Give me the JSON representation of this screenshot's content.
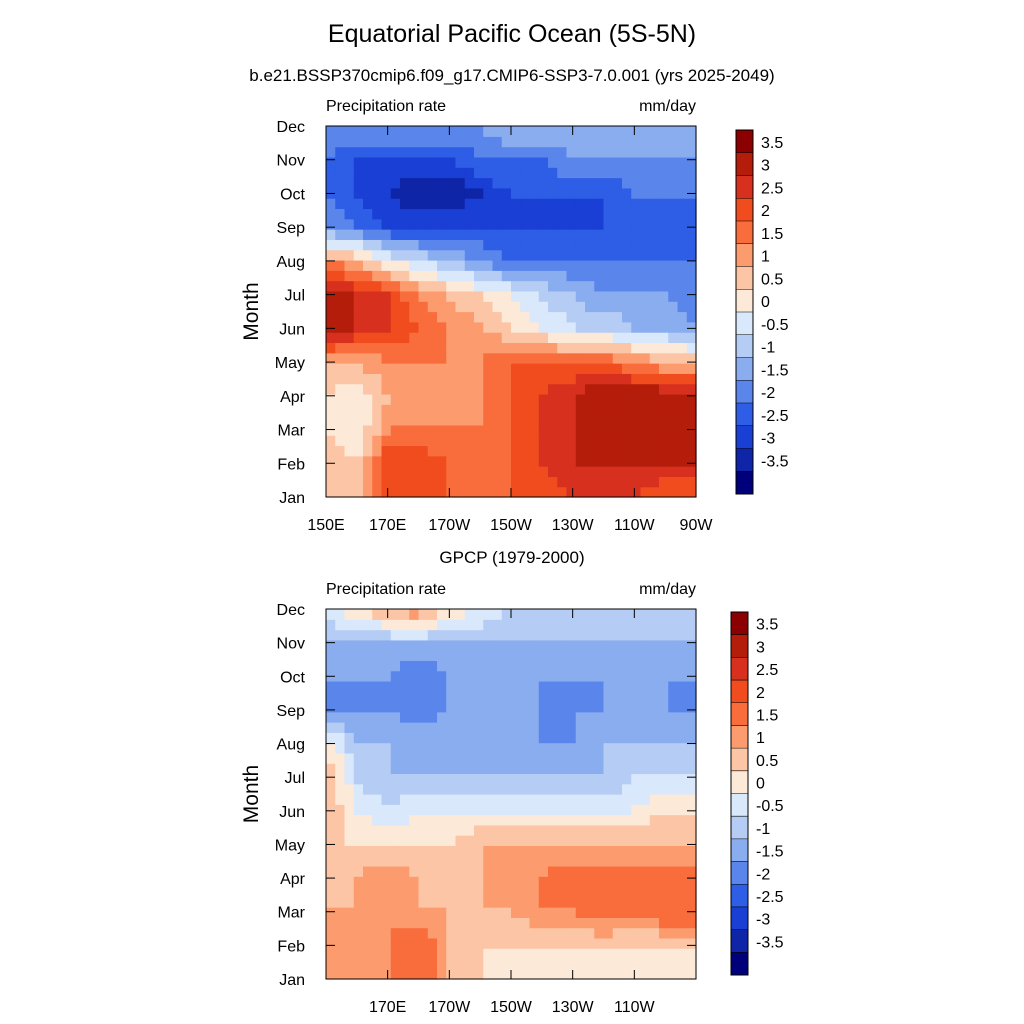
{
  "figure": {
    "title": "Equatorial Pacific Ocean (5S-5N)",
    "subtitle": "b.e21.BSSP370cmip6.f09_g17.CMIP6-SSP3-7.0.001 (yrs 2025-2049)",
    "panel2_title": "GPCP (1979-2000)"
  },
  "colorbar": {
    "levels": [
      "3.5",
      "3",
      "2.5",
      "2",
      "1.5",
      "1",
      "0.5",
      "0",
      "-0.5",
      "-1",
      "-1.5",
      "-2",
      "-2.5",
      "-3",
      "-3.5"
    ],
    "colors": [
      "#8b0000",
      "#b51d0b",
      "#d7301f",
      "#f04c1e",
      "#f96c3c",
      "#fb9b6e",
      "#fcc5a5",
      "#fde9d8",
      "#d9e8fb",
      "#b5cdf5",
      "#8aadf0",
      "#5a86ec",
      "#2e5de6",
      "#1a3fd4",
      "#0e25a8",
      "#00007a"
    ]
  },
  "chart_data": [
    {
      "type": "heatmap",
      "left_label": "Precipitation rate",
      "right_label": "mm/day",
      "ylabel": "Month",
      "x_ticks": [
        "150E",
        "170E",
        "170W",
        "150W",
        "130W",
        "110W",
        "90W"
      ],
      "x_range": [
        "150E",
        "90W"
      ],
      "y_ticks": [
        "Jan",
        "Feb",
        "Mar",
        "Apr",
        "May",
        "Jun",
        "Jul",
        "Aug",
        "Sep",
        "Oct",
        "Nov",
        "Dec"
      ],
      "units": "mm/day",
      "rows": [
        [
          1.0,
          0.5,
          2.5,
          2.0,
          2.0,
          1.5,
          2.0,
          2.0,
          2.5,
          2.5,
          2.5,
          2.0,
          2.0
        ],
        [
          1.0,
          0.5,
          2.5,
          2.5,
          2.0,
          1.5,
          2.0,
          2.5,
          3.0,
          3.0,
          3.0,
          3.0,
          3.0
        ],
        [
          0.5,
          0.0,
          1.5,
          1.5,
          1.5,
          1.5,
          2.0,
          2.5,
          3.0,
          3.5,
          3.5,
          3.5,
          3.5
        ],
        [
          0.5,
          0.0,
          1.0,
          1.0,
          1.0,
          1.5,
          2.0,
          2.5,
          3.0,
          3.5,
          3.5,
          3.5,
          3.0
        ],
        [
          1.0,
          1.0,
          1.5,
          1.5,
          1.5,
          1.5,
          2.0,
          2.0,
          2.0,
          2.0,
          1.5,
          1.0,
          1.0
        ],
        [
          3.5,
          3.0,
          2.5,
          2.0,
          1.5,
          1.0,
          0.5,
          0.0,
          -0.5,
          -0.5,
          -1.0,
          -1.0,
          -1.5
        ],
        [
          3.5,
          3.0,
          2.5,
          1.5,
          1.0,
          0.5,
          0.0,
          -0.5,
          -1.0,
          -1.5,
          -1.5,
          -1.5,
          -2.0
        ],
        [
          1.5,
          1.0,
          0.0,
          -0.5,
          -1.0,
          -1.5,
          -2.0,
          -2.0,
          -2.0,
          -2.0,
          -2.0,
          -2.0,
          -2.0
        ],
        [
          -1.5,
          -2.0,
          -2.5,
          -2.5,
          -2.5,
          -2.5,
          -2.5,
          -2.5,
          -2.5,
          -2.5,
          -2.0,
          -2.0,
          -2.0
        ],
        [
          -2.0,
          -2.5,
          -3.0,
          -3.5,
          -3.5,
          -3.0,
          -2.5,
          -2.5,
          -2.5,
          -2.5,
          -2.0,
          -2.0,
          -2.0
        ],
        [
          -2.0,
          -2.5,
          -2.5,
          -2.5,
          -2.5,
          -2.0,
          -2.0,
          -2.0,
          -1.5,
          -1.5,
          -1.5,
          -1.5,
          -1.5
        ],
        [
          -1.5,
          -1.5,
          -1.5,
          -1.5,
          -1.5,
          -1.5,
          -1.0,
          -1.0,
          -1.0,
          -1.0,
          -1.0,
          -1.0,
          -1.0
        ]
      ]
    },
    {
      "type": "heatmap",
      "left_label": "Precipitation rate",
      "right_label": "mm/day",
      "ylabel": "Month",
      "x_ticks": [
        "170E",
        "170W",
        "150W",
        "130W",
        "110W"
      ],
      "x_range": [
        "150E",
        "90W"
      ],
      "y_ticks": [
        "Jan",
        "Feb",
        "Mar",
        "Apr",
        "May",
        "Jun",
        "Jul",
        "Aug",
        "Sep",
        "Oct",
        "Nov",
        "Dec"
      ],
      "units": "mm/day",
      "rows": [
        [
          1.0,
          1.5,
          1.5,
          2.0,
          1.0,
          0.5,
          0.5,
          0.5,
          0.5,
          0.5,
          0.5,
          0.5,
          0.5
        ],
        [
          1.0,
          1.5,
          1.5,
          2.0,
          1.0,
          0.5,
          0.5,
          0.5,
          0.5,
          0.5,
          0.5,
          0.5,
          0.5
        ],
        [
          1.0,
          1.0,
          1.5,
          1.0,
          1.0,
          1.0,
          1.0,
          1.5,
          1.5,
          2.0,
          1.5,
          2.0,
          2.0
        ],
        [
          1.0,
          1.0,
          1.5,
          1.0,
          1.0,
          1.0,
          1.5,
          1.5,
          2.0,
          2.0,
          2.0,
          2.0,
          2.0
        ],
        [
          0.5,
          0.5,
          0.5,
          0.5,
          0.5,
          1.0,
          1.0,
          1.0,
          1.0,
          1.0,
          1.0,
          1.0,
          1.0
        ],
        [
          1.0,
          0.0,
          -0.5,
          0.0,
          0.0,
          0.0,
          0.0,
          0.0,
          0.0,
          0.0,
          0.0,
          0.5,
          0.5
        ],
        [
          1.0,
          -0.5,
          -1.0,
          -1.0,
          -1.0,
          -1.0,
          -1.0,
          -1.0,
          -1.0,
          -1.0,
          -0.5,
          -0.5,
          -0.5
        ],
        [
          0.5,
          -1.0,
          -1.0,
          -1.0,
          -1.0,
          -1.0,
          -1.0,
          -1.5,
          -1.5,
          -1.0,
          -1.0,
          -1.0,
          -1.0
        ],
        [
          -1.5,
          -1.5,
          -1.5,
          -2.0,
          -1.5,
          -1.0,
          -1.0,
          -1.5,
          -1.5,
          -1.5,
          -1.0,
          -1.5,
          -1.5
        ],
        [
          -1.5,
          -1.5,
          -1.5,
          -2.0,
          -1.5,
          -1.0,
          -1.0,
          -1.5,
          -1.5,
          -1.5,
          -1.0,
          -1.5,
          -1.5
        ],
        [
          -1.0,
          -1.0,
          -1.0,
          -1.0,
          -1.0,
          -1.0,
          -1.0,
          -1.0,
          -1.0,
          -1.0,
          -1.0,
          -1.0,
          -1.0
        ],
        [
          -0.5,
          0.5,
          1.0,
          1.5,
          0.5,
          0.0,
          -0.5,
          -0.5,
          -0.5,
          -0.5,
          -0.5,
          -0.5,
          -0.5
        ]
      ]
    }
  ]
}
